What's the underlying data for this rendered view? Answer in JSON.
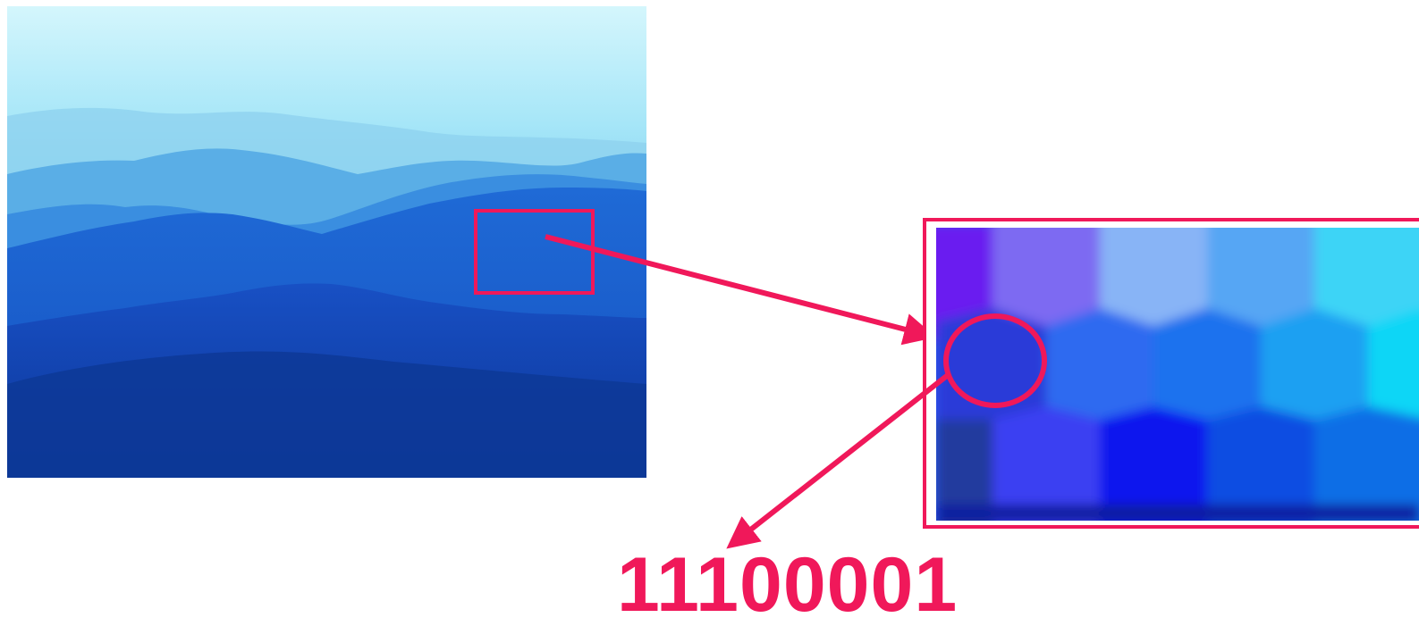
{
  "diagram": {
    "binary_value": "11100001"
  },
  "colors": {
    "accent": "#f0185a",
    "sky_top": "#ccf4fb",
    "sky_bottom": "#8fd6f2",
    "far_ridge": "#5cb0e4",
    "mid_ridge": "#2f86dc",
    "near_ridge": "#1a5fcc",
    "front_ridge": "#0f3fae",
    "sampled_pixel": "#2a3ad8"
  },
  "icons": {
    "zoom_frame": "zoom-box-icon",
    "arrow": "arrow-icon"
  }
}
